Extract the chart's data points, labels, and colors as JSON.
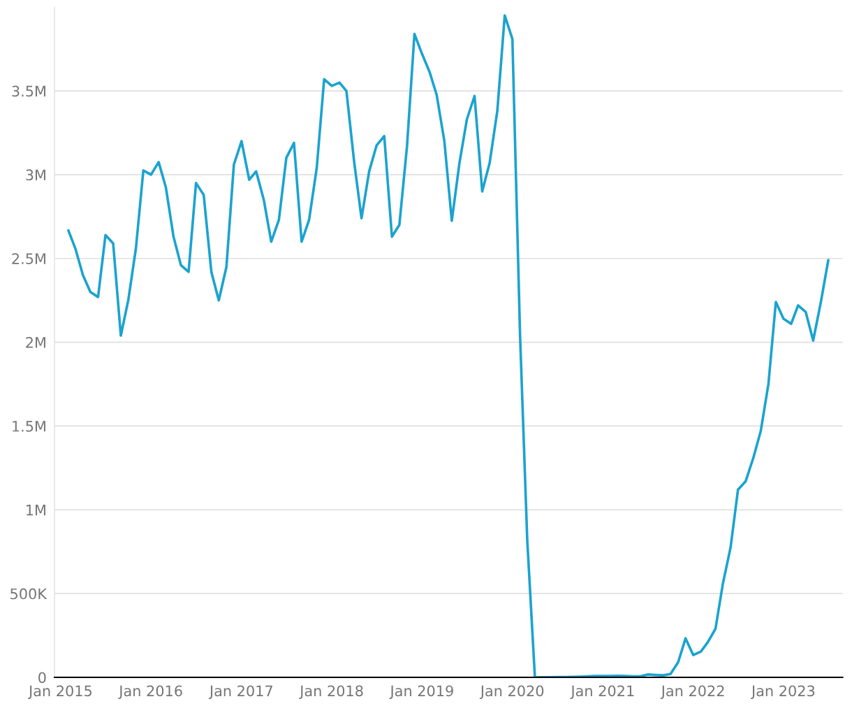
{
  "chart_data": {
    "type": "line",
    "x": [
      "2015-02",
      "2015-03",
      "2015-04",
      "2015-05",
      "2015-06",
      "2015-07",
      "2015-08",
      "2015-09",
      "2015-10",
      "2015-11",
      "2015-12",
      "2016-01",
      "2016-02",
      "2016-03",
      "2016-04",
      "2016-05",
      "2016-06",
      "2016-07",
      "2016-08",
      "2016-09",
      "2016-10",
      "2016-11",
      "2016-12",
      "2017-01",
      "2017-02",
      "2017-03",
      "2017-04",
      "2017-05",
      "2017-06",
      "2017-07",
      "2017-08",
      "2017-09",
      "2017-10",
      "2017-11",
      "2017-12",
      "2018-01",
      "2018-02",
      "2018-03",
      "2018-04",
      "2018-05",
      "2018-06",
      "2018-07",
      "2018-08",
      "2018-09",
      "2018-10",
      "2018-11",
      "2018-12",
      "2019-01",
      "2019-02",
      "2019-03",
      "2019-04",
      "2019-05",
      "2019-06",
      "2019-07",
      "2019-08",
      "2019-09",
      "2019-10",
      "2019-11",
      "2019-12",
      "2020-01",
      "2020-02",
      "2020-03",
      "2020-04",
      "2020-05",
      "2020-06",
      "2020-07",
      "2020-08",
      "2020-09",
      "2020-10",
      "2020-11",
      "2020-12",
      "2021-01",
      "2021-02",
      "2021-03",
      "2021-04",
      "2021-05",
      "2021-06",
      "2021-07",
      "2021-08",
      "2021-09",
      "2021-10",
      "2021-11",
      "2021-12",
      "2022-01",
      "2022-02",
      "2022-03",
      "2022-04",
      "2022-05",
      "2022-06",
      "2022-07",
      "2022-08",
      "2022-09",
      "2022-10",
      "2022-11",
      "2022-12",
      "2023-01",
      "2023-02",
      "2023-03",
      "2023-04",
      "2023-05",
      "2023-06",
      "2023-07"
    ],
    "series": [
      {
        "color": "#1ba3cf",
        "values": [
          2667000,
          2560000,
          2400000,
          2300000,
          2270000,
          2640000,
          2590000,
          2040000,
          2250000,
          2560000,
          3025000,
          3000000,
          3075000,
          2925000,
          2630000,
          2460000,
          2420000,
          2950000,
          2880000,
          2420000,
          2250000,
          2450000,
          3060000,
          3200000,
          2970000,
          3020000,
          2850000,
          2600000,
          2730000,
          3100000,
          3190000,
          2600000,
          2730000,
          3040000,
          3570000,
          3530000,
          3550000,
          3500000,
          3080000,
          2740000,
          3020000,
          3175000,
          3230000,
          2630000,
          2700000,
          3170000,
          3840000,
          3720000,
          3610000,
          3475000,
          3200000,
          2725000,
          3070000,
          3330000,
          3470000,
          2900000,
          3070000,
          3380000,
          3950000,
          3810000,
          2040000,
          820000,
          0,
          1000,
          1000,
          2000,
          2000,
          3000,
          4000,
          6000,
          8000,
          8000,
          8000,
          9000,
          8000,
          6000,
          6000,
          17000,
          14000,
          12000,
          20000,
          90000,
          233000,
          133000,
          154000,
          210000,
          290000,
          560000,
          775000,
          1120000,
          1170000,
          1310000,
          1470000,
          1750000,
          2240000,
          2140000,
          2110000,
          2220000,
          2180000,
          2010000,
          2240000,
          2490000
        ]
      }
    ],
    "xlim": [
      "2014-12-07",
      "2023-08-28"
    ],
    "xticks": [
      {
        "value": "2015-01",
        "label": "Jan 2015"
      },
      {
        "value": "2016-01",
        "label": "Jan 2016"
      },
      {
        "value": "2017-01",
        "label": "Jan 2017"
      },
      {
        "value": "2018-01",
        "label": "Jan 2018"
      },
      {
        "value": "2019-01",
        "label": "Jan 2019"
      },
      {
        "value": "2020-01",
        "label": "Jan 2020"
      },
      {
        "value": "2021-01",
        "label": "Jan 2021"
      },
      {
        "value": "2022-01",
        "label": "Jan 2022"
      },
      {
        "value": "2023-01",
        "label": "Jan 2023"
      }
    ],
    "ylim": [
      0,
      4000000
    ],
    "yticks": [
      0,
      {
        "value": 500000,
        "label": "500K"
      },
      {
        "value": 1000000,
        "label": "1M"
      },
      {
        "value": 1500000,
        "label": "1.5M"
      },
      {
        "value": 2000000,
        "label": "2M"
      },
      {
        "value": 2500000,
        "label": "2.5M"
      },
      {
        "value": 3000000,
        "label": "3M"
      },
      {
        "value": 3500000,
        "label": "3.5M"
      }
    ],
    "grid": "y",
    "legend": false,
    "marker": "none",
    "line_style": "solid"
  }
}
